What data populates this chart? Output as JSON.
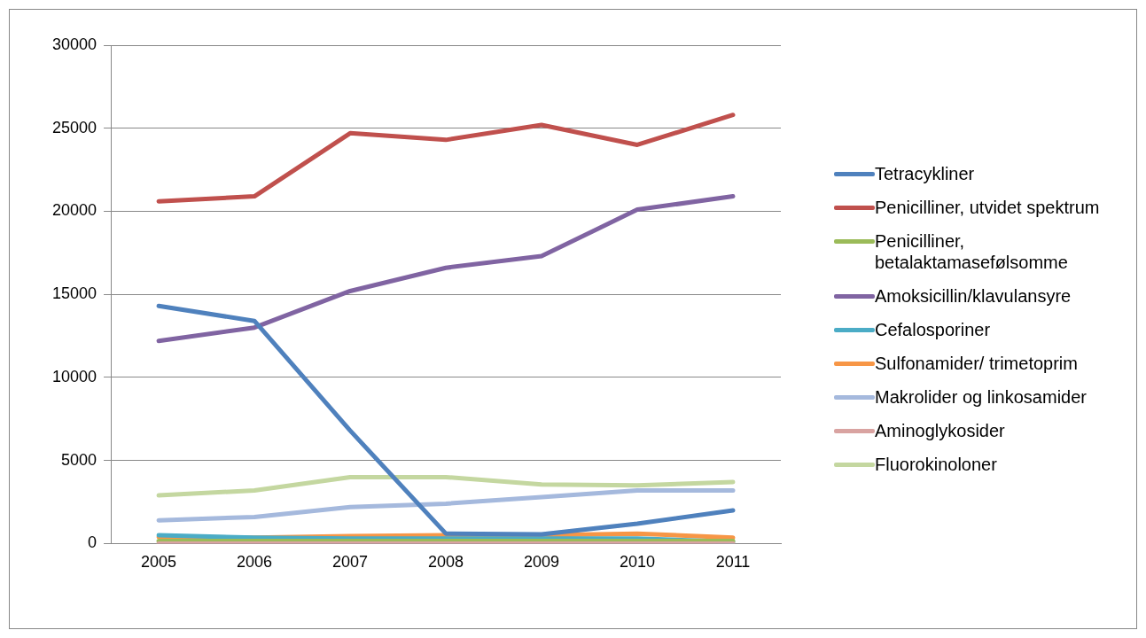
{
  "chart_data": {
    "type": "line",
    "categories": [
      "2005",
      "2006",
      "2007",
      "2008",
      "2009",
      "2010",
      "2011"
    ],
    "ylim": [
      0,
      30000
    ],
    "yticks": [
      0,
      5000,
      10000,
      15000,
      20000,
      25000,
      30000
    ],
    "grid": "y",
    "legend": "right",
    "marker": "none",
    "series": [
      {
        "name": "Tetracykliner",
        "color": "#4f81bd",
        "values": [
          14300,
          13400,
          6800,
          600,
          550,
          1200,
          2000
        ]
      },
      {
        "name": "Penicilliner, utvidet spektrum",
        "color": "#c0504d",
        "values": [
          20600,
          20900,
          24700,
          24300,
          25200,
          24000,
          25800
        ]
      },
      {
        "name": "Penicilliner, betalaktamasefølsomme",
        "color": "#9bbb59",
        "values": [
          150,
          150,
          150,
          150,
          150,
          150,
          150
        ]
      },
      {
        "name": "Amoksicillin/klavulansyre",
        "color": "#8064a2",
        "values": [
          12200,
          13000,
          15200,
          16600,
          17300,
          20100,
          20900
        ]
      },
      {
        "name": "Cefalosporiner",
        "color": "#4bacc6",
        "values": [
          500,
          350,
          300,
          300,
          300,
          300,
          100
        ]
      },
      {
        "name": "Sulfonamider/ trimetoprim",
        "color": "#f79646",
        "values": [
          400,
          350,
          450,
          500,
          500,
          600,
          350
        ]
      },
      {
        "name": "Makrolider og linkosamider",
        "color": "#a5b9dd",
        "values": [
          1400,
          1600,
          2200,
          2400,
          2800,
          3200,
          3200
        ]
      },
      {
        "name": "Aminoglykosider",
        "color": "#d9a3a1",
        "values": [
          0,
          0,
          0,
          0,
          0,
          0,
          0
        ]
      },
      {
        "name": "Fluorokinoloner",
        "color": "#c4d7a0",
        "values": [
          2900,
          3200,
          4000,
          4000,
          3550,
          3500,
          3700
        ]
      }
    ]
  }
}
